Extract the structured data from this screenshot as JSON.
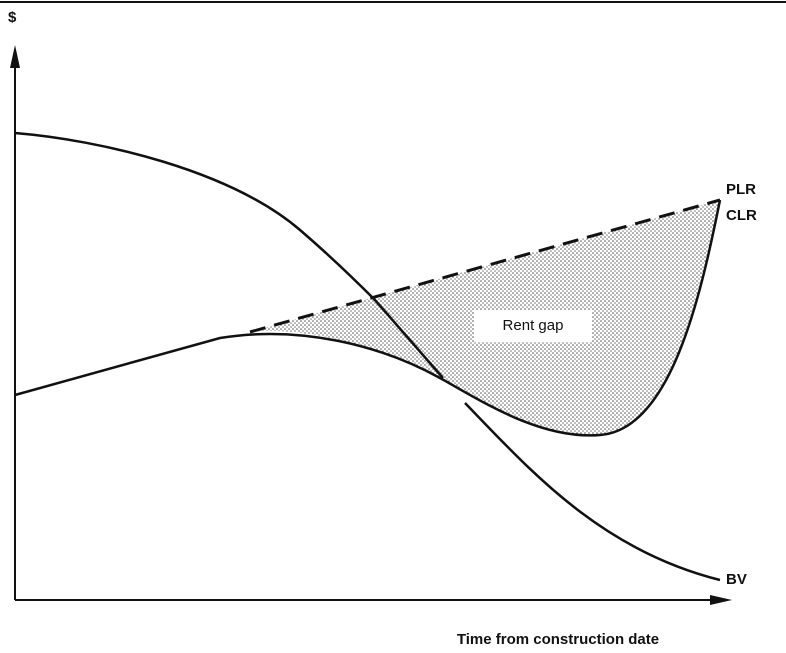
{
  "axis": {
    "y_label": "$",
    "x_label": "Time from construction date"
  },
  "curves": {
    "plr": "PLR",
    "clr": "CLR",
    "bv": "BV"
  },
  "region": {
    "label": "Rent gap"
  }
}
